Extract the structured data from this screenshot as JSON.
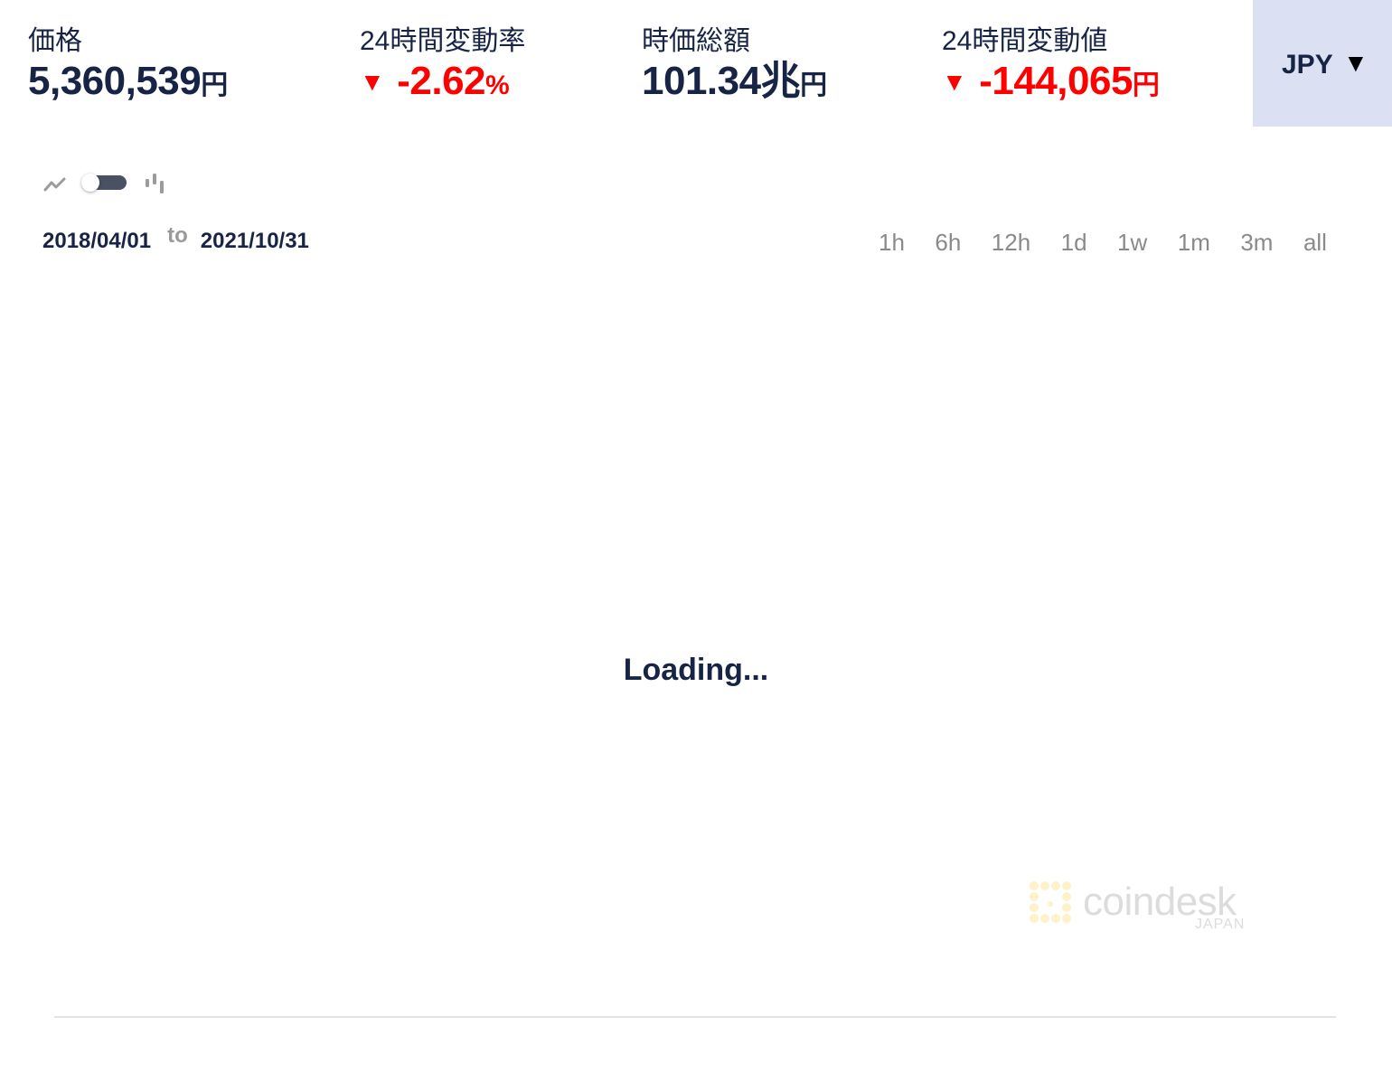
{
  "stats": {
    "price": {
      "label": "価格",
      "value": "5,360,539",
      "unit": "円"
    },
    "change_pct_24h": {
      "label": "24時間変動率",
      "arrow": "▼",
      "value": "-2.62",
      "unit": "%"
    },
    "market_cap": {
      "label": "時価総額",
      "value": "101.34兆",
      "unit": "円"
    },
    "change_value_24h": {
      "label": "24時間変動値",
      "arrow": "▼",
      "value": "-144,065",
      "unit": "円"
    }
  },
  "currency": {
    "selected": "JPY",
    "caret": "▼"
  },
  "chart_controls": {
    "mode_left_icon": "line-chart-icon",
    "mode_right_icon": "candlestick-icon",
    "toggle_state": "line"
  },
  "date_range": {
    "from": "2018/04/01",
    "separator": "to",
    "to": "2021/10/31"
  },
  "ranges": [
    "1h",
    "6h",
    "12h",
    "1d",
    "1w",
    "1m",
    "3m",
    "all"
  ],
  "chart": {
    "loading_text": "Loading..."
  },
  "watermark": {
    "brand": "coindesk",
    "sub": "JAPAN"
  },
  "colors": {
    "navy": "#172445",
    "negative": "#ff0000",
    "currency_bg": "#dbe1f2",
    "muted": "#8a8a8a",
    "watermark_mark": "#fdf2c8"
  }
}
